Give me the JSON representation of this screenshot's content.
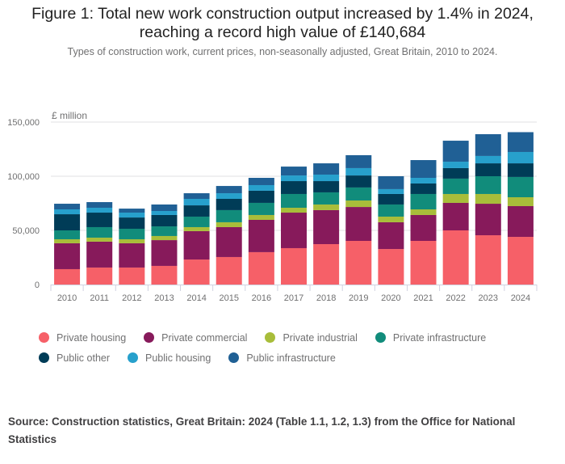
{
  "header": {
    "title_line1": "Figure 1: Total new work construction output increased by 1.4% in 2024,",
    "title_line2": "reaching a record high value of £140,684",
    "subtitle": "Types of construction work, current prices, non-seasonally adjusted, Great Britain, 2010 to 2024."
  },
  "legend": {
    "row1": [
      {
        "label": "Private housing",
        "color": "#F66068"
      },
      {
        "label": "Private commercial",
        "color": "#871A5B"
      },
      {
        "label": "Private industrial",
        "color": "#A8BD3A"
      },
      {
        "label": "Private infrastructure",
        "color": "#118C7B"
      }
    ],
    "row2": [
      {
        "label": "Public other",
        "color": "#003C57"
      },
      {
        "label": "Public housing",
        "color": "#27A0CC"
      },
      {
        "label": "Public infrastructure",
        "color": "#206095"
      }
    ]
  },
  "source": "Source: Construction statistics, Great Britain: 2024 (Table 1.1, 1.2, 1.3) from the Office for National Statistics",
  "chart_data": {
    "type": "bar",
    "stacked": true,
    "title": "Figure 1: Total new work construction output increased by 1.4% in 2024, reaching a record high value of £140,684",
    "subtitle": "Types of construction work, current prices, non-seasonally adjusted, Great Britain, 2010 to 2024.",
    "xlabel": "",
    "ylabel": "£ million",
    "ylim": [
      0,
      150000
    ],
    "yticks": [
      0,
      50000,
      100000,
      150000
    ],
    "ytick_labels": [
      "0",
      "50,000",
      "100,000",
      "150,000"
    ],
    "grid": true,
    "legend_position": "bottom",
    "categories": [
      "2010",
      "2011",
      "2012",
      "2013",
      "2014",
      "2015",
      "2016",
      "2017",
      "2018",
      "2019",
      "2020",
      "2021",
      "2022",
      "2023",
      "2024"
    ],
    "series": [
      {
        "name": "Private housing",
        "color": "#F66068",
        "values": [
          14200,
          15700,
          15700,
          17200,
          23100,
          25400,
          29900,
          33600,
          37300,
          40300,
          32800,
          40300,
          50000,
          45500,
          44000
        ]
      },
      {
        "name": "Private commercial",
        "color": "#871A5B",
        "values": [
          23900,
          23900,
          22400,
          23800,
          26200,
          27600,
          29800,
          32800,
          31400,
          31300,
          24700,
          23900,
          25400,
          29100,
          28400
        ]
      },
      {
        "name": "Private industrial",
        "color": "#A8BD3A",
        "values": [
          3700,
          3700,
          3700,
          3800,
          3700,
          4500,
          4500,
          4500,
          5200,
          6000,
          5200,
          5200,
          8200,
          9000,
          8200
        ]
      },
      {
        "name": "Private infrastructure",
        "color": "#118C7B",
        "values": [
          8200,
          9700,
          9700,
          8900,
          9700,
          11200,
          11200,
          12700,
          11200,
          12000,
          11200,
          14200,
          14200,
          16400,
          18700
        ]
      },
      {
        "name": "Public other",
        "color": "#003C57",
        "values": [
          14900,
          13400,
          10400,
          10500,
          10400,
          10400,
          11200,
          11900,
          10400,
          11100,
          9700,
          9700,
          9700,
          11900,
          12600
        ]
      },
      {
        "name": "Public housing",
        "color": "#27A0CC",
        "values": [
          4500,
          4500,
          4500,
          3700,
          6000,
          5200,
          5200,
          5200,
          6000,
          6800,
          4500,
          5200,
          5900,
          6800,
          10500
        ]
      },
      {
        "name": "Public infrastructure",
        "color": "#206095",
        "values": [
          5200,
          5200,
          3700,
          6000,
          5200,
          6700,
          6700,
          8200,
          10400,
          11900,
          11900,
          16400,
          19400,
          20100,
          18284
        ]
      }
    ],
    "totals": [
      74600,
      76100,
      70100,
      73900,
      84300,
      91000,
      98500,
      108900,
      111900,
      119400,
      100000,
      114900,
      132800,
      138800,
      140684
    ]
  }
}
